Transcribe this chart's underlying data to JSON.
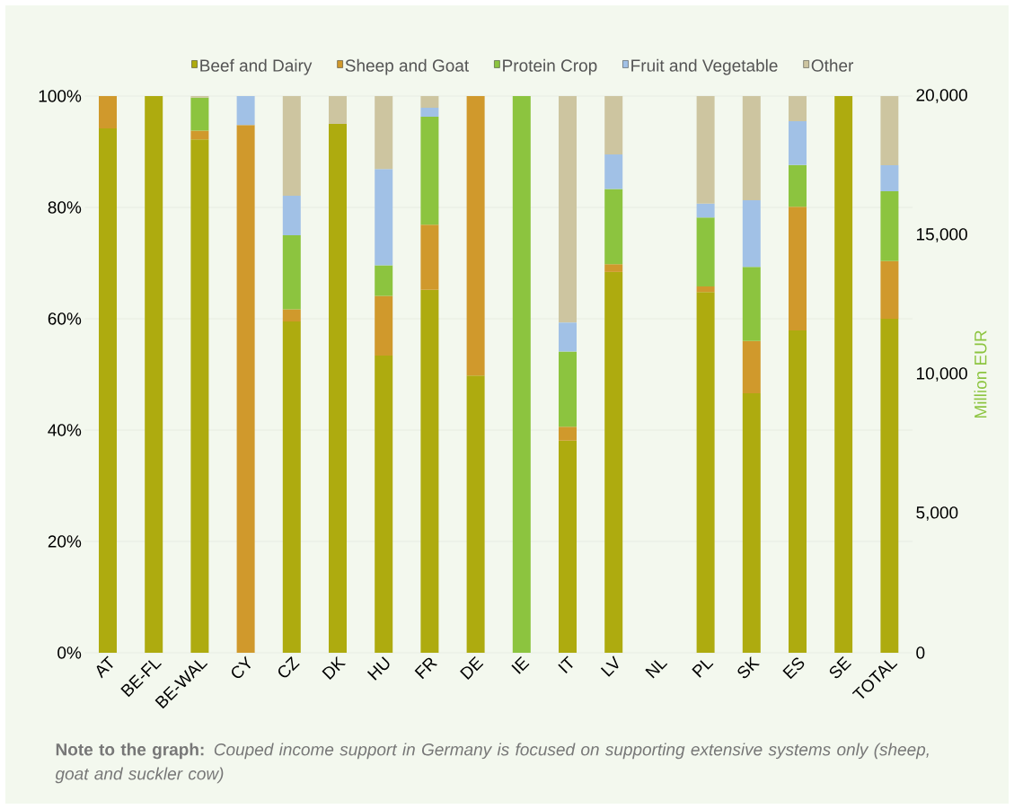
{
  "chart_data": {
    "type": "bar",
    "stacked": true,
    "grid": "y",
    "legend": "top",
    "categories": [
      "AT",
      "BE-FL",
      "BE-WAL",
      "CY",
      "CZ",
      "DK",
      "HU",
      "FR",
      "DE",
      "IE",
      "IT",
      "LV",
      "NL",
      "PL",
      "SK",
      "ES",
      "SE",
      "TOTAL"
    ],
    "ylim": [
      0,
      100
    ],
    "yticks": [
      {
        "value": 0,
        "label": "0%"
      },
      {
        "value": 20,
        "label": "20%"
      },
      {
        "value": 40,
        "label": "40%"
      },
      {
        "value": 60,
        "label": "60%"
      },
      {
        "value": 80,
        "label": "80%"
      },
      {
        "value": 100,
        "label": "100%"
      }
    ],
    "y2lim": [
      0,
      20000
    ],
    "y2ticks": [
      0,
      {
        "value": 5000,
        "label": "5,000"
      },
      {
        "value": 10000,
        "label": "10,000"
      },
      {
        "value": 15000,
        "label": "15,000"
      },
      {
        "value": 20000,
        "label": "20,000"
      }
    ],
    "y2label": "Million EUR",
    "series": [
      {
        "name": "Beef and Dairy",
        "color": "#aeab0f",
        "values": [
          94.2,
          100,
          92.2,
          0,
          59.5,
          95.0,
          53.4,
          65.2,
          49.8,
          0,
          38.1,
          68.4,
          null,
          64.8,
          46.6,
          57.9,
          100,
          null
        ]
      },
      {
        "name": "Sheep and Goat",
        "color": "#d0992c",
        "values": [
          5.8,
          0,
          1.6,
          94.8,
          2.2,
          0,
          10.7,
          11.7,
          50.2,
          0,
          2.5,
          1.4,
          null,
          1.0,
          9.4,
          22.2,
          0,
          null
        ]
      },
      {
        "name": "Protein Crop",
        "color": "#8cc43f",
        "values": [
          0,
          0,
          5.9,
          0,
          13.3,
          0,
          5.5,
          19.4,
          0,
          100,
          13.5,
          13.5,
          null,
          12.4,
          13.3,
          7.5,
          0,
          null
        ]
      },
      {
        "name": "Fruit and Vegetable",
        "color": "#a1c1e6",
        "values": [
          0,
          0,
          0,
          5.2,
          7.1,
          0,
          17.3,
          1.6,
          0,
          0,
          5.2,
          6.2,
          null,
          2.5,
          12.0,
          7.9,
          0,
          null
        ]
      },
      {
        "name": "Other",
        "color": "#cdc5a0",
        "values": [
          0,
          0,
          0.3,
          0,
          17.9,
          5.0,
          13.1,
          2.1,
          0,
          0,
          40.7,
          10.5,
          null,
          19.3,
          18.7,
          4.5,
          0,
          null
        ]
      },
      {
        "axis": "y2",
        "color": "#aeab0f",
        "values": [
          null,
          null,
          null,
          null,
          null,
          null,
          null,
          null,
          null,
          null,
          null,
          null,
          null,
          null,
          null,
          null,
          null,
          12000
        ]
      },
      {
        "axis": "y2",
        "color": "#d0992c",
        "values": [
          null,
          null,
          null,
          null,
          null,
          null,
          null,
          null,
          null,
          null,
          null,
          null,
          null,
          null,
          null,
          null,
          null,
          2070
        ]
      },
      {
        "axis": "y2",
        "color": "#8cc43f",
        "values": [
          null,
          null,
          null,
          null,
          null,
          null,
          null,
          null,
          null,
          null,
          null,
          null,
          null,
          null,
          null,
          null,
          null,
          2510
        ]
      },
      {
        "axis": "y2",
        "color": "#a1c1e6",
        "values": [
          null,
          null,
          null,
          null,
          null,
          null,
          null,
          null,
          null,
          null,
          null,
          null,
          null,
          null,
          null,
          null,
          null,
          935
        ]
      },
      {
        "axis": "y2",
        "color": "#cdc5a0",
        "values": [
          null,
          null,
          null,
          null,
          null,
          null,
          null,
          null,
          null,
          null,
          null,
          null,
          null,
          null,
          null,
          null,
          null,
          2485
        ]
      }
    ],
    "annotations": [
      "**Note to the graph:** *Couped income support in Germany is focused on supporting extensive systems only (sheep, goat and suckler cow)*"
    ]
  }
}
